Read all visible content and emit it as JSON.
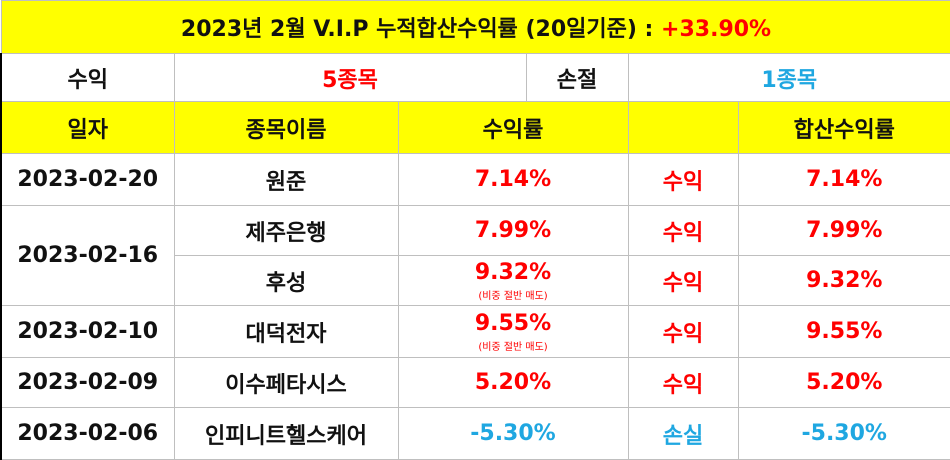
{
  "title": {
    "text": "2023년 2월 V.I.P 누적합산수익률 (20일기준) : ",
    "value": "+33.90%"
  },
  "summary": {
    "profit_label": "수익",
    "profit_count": "5종목",
    "loss_label": "손절",
    "loss_count": "1종목"
  },
  "headers": {
    "date": "일자",
    "stock": "종목이름",
    "return": "수익률",
    "result": "",
    "total": "합산수익률"
  },
  "rows": [
    {
      "date": "2023-02-20",
      "stock": "원준",
      "return": "7.14%",
      "note": "",
      "result": "수익",
      "total": "7.14%"
    },
    {
      "date": "2023-02-16",
      "stock": "제주은행",
      "return": "7.99%",
      "note": "",
      "result": "수익",
      "total": "7.99%"
    },
    {
      "date": "",
      "stock": "후성",
      "return": "9.32%",
      "note": "(비중 절반 매도)",
      "result": "수익",
      "total": "9.32%"
    },
    {
      "date": "2023-02-10",
      "stock": "대덕전자",
      "return": "9.55%",
      "note": "(비중 절반 매도)",
      "result": "수익",
      "total": "9.55%"
    },
    {
      "date": "2023-02-09",
      "stock": "이수페타시스",
      "return": "5.20%",
      "note": "",
      "result": "수익",
      "total": "5.20%"
    },
    {
      "date": "2023-02-06",
      "stock": "인피니트헬스케어",
      "return": "-5.30%",
      "note": "",
      "result": "손실",
      "total": "-5.30%"
    }
  ],
  "colors": {
    "highlight": "#ffff00",
    "profit": "#ff0000",
    "loss": "#1fa7e1"
  }
}
